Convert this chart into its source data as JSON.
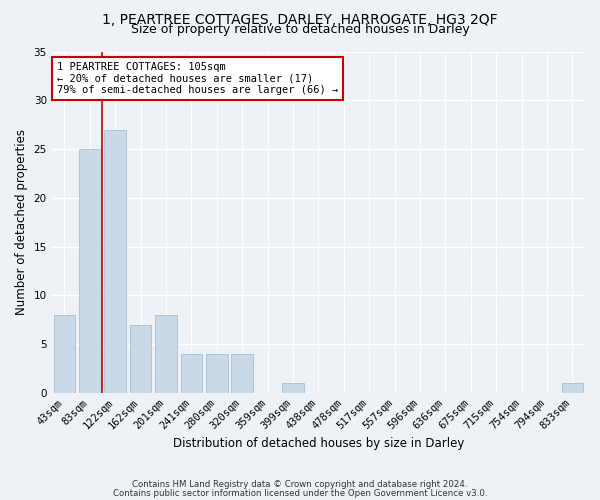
{
  "title": "1, PEARTREE COTTAGES, DARLEY, HARROGATE, HG3 2QF",
  "subtitle": "Size of property relative to detached houses in Darley",
  "xlabel": "Distribution of detached houses by size in Darley",
  "ylabel": "Number of detached properties",
  "footer1": "Contains HM Land Registry data © Crown copyright and database right 2024.",
  "footer2": "Contains public sector information licensed under the Open Government Licence v3.0.",
  "categories": [
    "43sqm",
    "83sqm",
    "122sqm",
    "162sqm",
    "201sqm",
    "241sqm",
    "280sqm",
    "320sqm",
    "359sqm",
    "399sqm",
    "438sqm",
    "478sqm",
    "517sqm",
    "557sqm",
    "596sqm",
    "636sqm",
    "675sqm",
    "715sqm",
    "754sqm",
    "794sqm",
    "833sqm"
  ],
  "values": [
    8,
    25,
    27,
    7,
    8,
    4,
    4,
    4,
    0,
    1,
    0,
    0,
    0,
    0,
    0,
    0,
    0,
    0,
    0,
    0,
    1
  ],
  "bar_color": "#c9d9e8",
  "bar_edge_color": "#a0b8cc",
  "vline_color": "#cc0000",
  "annotation_text": "1 PEARTREE COTTAGES: 105sqm\n← 20% of detached houses are smaller (17)\n79% of semi-detached houses are larger (66) →",
  "annotation_box_color": "white",
  "annotation_box_edge": "#cc0000",
  "ylim": [
    0,
    35
  ],
  "yticks": [
    0,
    5,
    10,
    15,
    20,
    25,
    30,
    35
  ],
  "title_fontsize": 10,
  "subtitle_fontsize": 9,
  "axis_fontsize": 8.5,
  "tick_fontsize": 7.5,
  "annotation_fontsize": 7.5,
  "background_color": "#eef2f7",
  "plot_bg_color": "#eef2f7"
}
